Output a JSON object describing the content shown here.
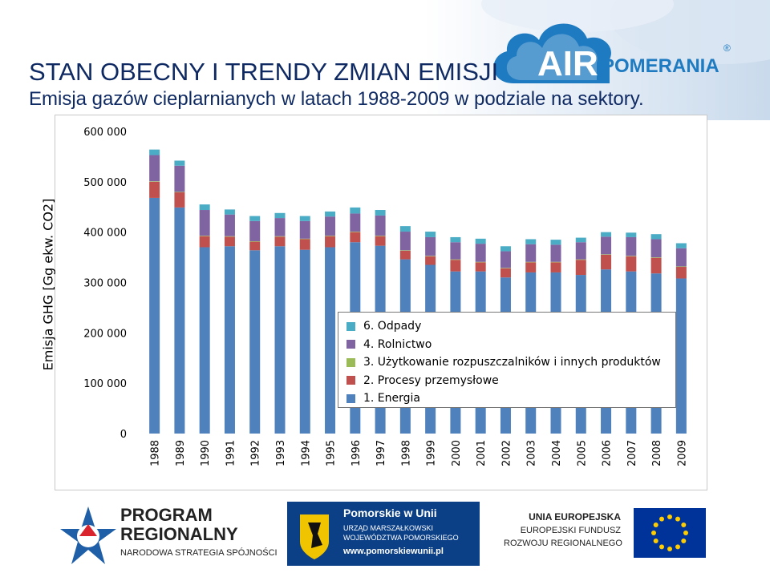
{
  "header": {
    "title": "STAN OBECNY I TRENDY ZMIAN EMISJI",
    "subtitle": "Emisja gazów cieplarnianych w latach 1988-2009 w podziale na sektory."
  },
  "brand": {
    "air_text": "AIR",
    "pomerania_text": "POMERANIA",
    "registered": "®",
    "accent": "#1f7bc1"
  },
  "chart_data": {
    "type": "bar",
    "stacked": true,
    "categories": [
      "1988",
      "1989",
      "1990",
      "1991",
      "1992",
      "1993",
      "1994",
      "1995",
      "1996",
      "1997",
      "1998",
      "1999",
      "2000",
      "2001",
      "2002",
      "2003",
      "2004",
      "2005",
      "2006",
      "2007",
      "2008",
      "2009"
    ],
    "series": [
      {
        "name": "1. Energia",
        "color": "#4f81bd",
        "values": [
          468000,
          449000,
          370000,
          372000,
          364000,
          372000,
          365000,
          370000,
          380000,
          373000,
          346000,
          335000,
          322000,
          322000,
          310000,
          320000,
          320000,
          315000,
          326000,
          322000,
          318000,
          308000
        ]
      },
      {
        "name": "2. Procesy przemysłowe",
        "color": "#c0504d",
        "values": [
          32000,
          30000,
          22000,
          19000,
          17000,
          19000,
          21000,
          22000,
          20000,
          19000,
          17000,
          17000,
          23000,
          18000,
          18000,
          20000,
          20000,
          30000,
          29000,
          30000,
          31000,
          23000
        ]
      },
      {
        "name": "3. Użytkowanie rozpuszczalników i innych produktów",
        "color": "#9bbb59",
        "values": [
          1000,
          1000,
          1000,
          1000,
          1000,
          1000,
          1000,
          1000,
          1000,
          1000,
          1000,
          1000,
          1000,
          1000,
          1000,
          1000,
          1000,
          1000,
          1000,
          1000,
          1000,
          1000
        ]
      },
      {
        "name": "4. Rolnictwo",
        "color": "#8064a2",
        "values": [
          52000,
          52000,
          51000,
          43000,
          40000,
          36000,
          35000,
          38000,
          36000,
          40000,
          37000,
          37000,
          34000,
          36000,
          33000,
          35000,
          34000,
          34000,
          35000,
          37000,
          36000,
          36000
        ]
      },
      {
        "name": "6. Odpady",
        "color": "#4bacc6",
        "values": [
          11000,
          10000,
          11000,
          10000,
          10000,
          10000,
          10000,
          10000,
          12000,
          11000,
          11000,
          11000,
          10000,
          10000,
          10000,
          10000,
          10000,
          9000,
          9000,
          9000,
          10000,
          10000
        ]
      }
    ],
    "ylabel": "Emisja GHG [Gg ekw. CO2]",
    "xlabel": "",
    "ylim": [
      0,
      600000
    ],
    "yticks": [
      "0",
      "100 000",
      "200 000",
      "300 000",
      "400 000",
      "500 000",
      "600 000"
    ],
    "legend_order": [
      "6. Odpady",
      "4. Rolnictwo",
      "3. Użytkowanie rozpuszczalników i innych produktów",
      "2. Procesy przemysłowe",
      "1. Energia"
    ],
    "legend_placement": "inside-right",
    "grid": false
  },
  "footer": {
    "program_line1": "PROGRAM",
    "program_line2": "REGIONALNY",
    "program_line3": "NARODOWA STRATEGIA SPÓJNOŚCI",
    "pomorskie_title": "Pomorskie w Unii",
    "pomorskie_line1": "URZĄD MARSZAŁKOWSKI",
    "pomorskie_line2": "WOJEWÓDZTWA POMORSKIEGO",
    "pomorskie_url": "www.pomorskiewunii.pl",
    "eu_line1": "UNIA EUROPEJSKA",
    "eu_line2": "EUROPEJSKI FUNDUSZ",
    "eu_line3": "ROZWOJU REGIONALNEGO"
  }
}
